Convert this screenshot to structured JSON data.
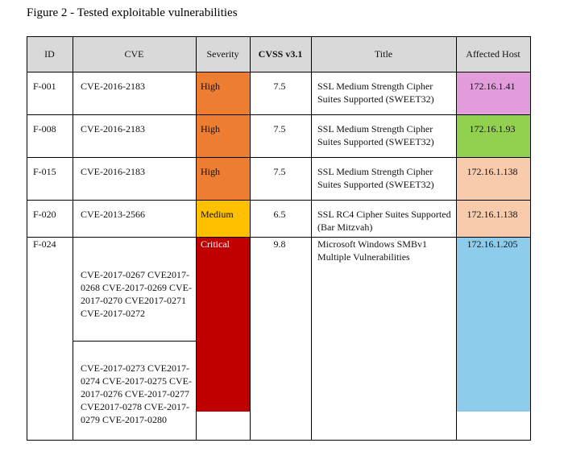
{
  "caption": "Figure 2 - Tested exploitable vulnerabilities",
  "table": {
    "header": [
      "ID",
      "CVE",
      "Severity",
      "CVSS v3.1",
      "Title",
      "Affected Host"
    ],
    "rows": [
      [
        "F-001",
        "CVE-2016-2183",
        "High",
        7.5,
        "SSL Medium Strength Cipher Suites Supported (SWEET32)",
        "172.16.1.41"
      ],
      [
        "F-008",
        "CVE-2016-2183",
        "High",
        7.5,
        "SSL Medium Strength Cipher Suites Supported (SWEET32)",
        "172.16.1.93"
      ],
      [
        "F-015",
        "CVE-2016-2183",
        "High",
        7.5,
        "SSL Medium Strength Cipher Suites Supported (SWEET32)",
        "172.16.1.138"
      ],
      [
        "F-020",
        "CVE-2013-2566",
        "Medium",
        6.5,
        "SSL RC4 Cipher Suites Supported (Bar Mitzvah)",
        "172.16.1.138"
      ],
      [
        "F-024",
        [
          "CVE-2017-0267 CVE2017-0268 CVE-2017-0269 CVE-2017-0270 CVE2017-0271 CVE-2017-0272",
          "CVE-2017-0273 CVE2017-0274 CVE-2017-0275 CVE-2017-0276 CVE-2017-0277 CVE2017-0278 CVE-2017-0279 CVE-2017-0280"
        ],
        "Critical",
        9.8,
        "Microsoft Windows SMBv1 Multiple Vulnerabilities",
        "172.16.1.205"
      ]
    ]
  }
}
